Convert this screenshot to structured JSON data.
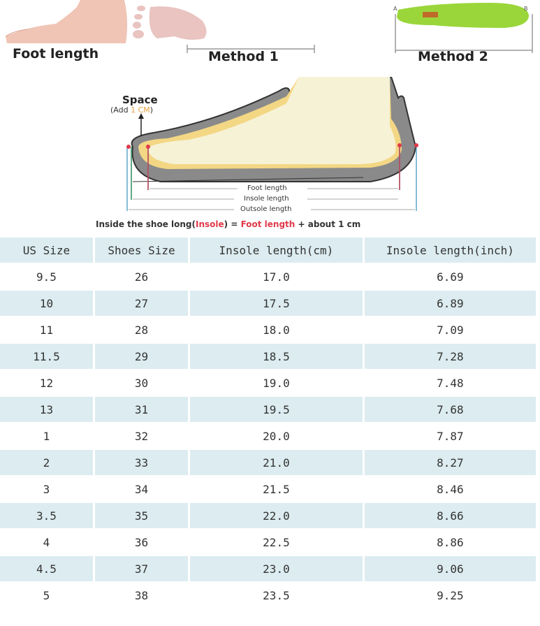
{
  "measure": {
    "foot_caption": "Foot length",
    "method1_caption": "Method 1",
    "method2_caption": "Method 2",
    "insole_point_a": "A",
    "insole_point_b": "B"
  },
  "diagram": {
    "space_title": "Space",
    "space_add_prefix": "(Add ",
    "space_add_value": "1 CM",
    "space_add_suffix": ")",
    "foot_length": "Foot length",
    "insole_length": "Insole length",
    "outsole_length": "Outsole length",
    "formula": {
      "part1": "Inside the shoe long(",
      "insole": "Insole",
      "part2": ") = ",
      "foot_length": "Foot length",
      "part3": " + about 1 cm"
    },
    "colors": {
      "accent_red": "#e03a4a",
      "accent_orange": "#e8a040",
      "insole_green": "#9ad63a"
    }
  },
  "table": {
    "headers": [
      "US Size",
      "Shoes Size",
      "Insole length(cm)",
      "Insole length(inch)"
    ],
    "rows": [
      [
        "9.5",
        "26",
        "17.0",
        "6.69"
      ],
      [
        "10",
        "27",
        "17.5",
        "6.89"
      ],
      [
        "11",
        "28",
        "18.0",
        "7.09"
      ],
      [
        "11.5",
        "29",
        "18.5",
        "7.28"
      ],
      [
        "12",
        "30",
        "19.0",
        "7.48"
      ],
      [
        "13",
        "31",
        "19.5",
        "7.68"
      ],
      [
        "1",
        "32",
        "20.0",
        "7.87"
      ],
      [
        "2",
        "33",
        "21.0",
        "8.27"
      ],
      [
        "3",
        "34",
        "21.5",
        "8.46"
      ],
      [
        "3.5",
        "35",
        "22.0",
        "8.66"
      ],
      [
        "4",
        "36",
        "22.5",
        "8.86"
      ],
      [
        "4.5",
        "37",
        "23.0",
        "9.06"
      ],
      [
        "5",
        "38",
        "23.5",
        "9.25"
      ]
    ],
    "shade_color": "#dcecf0"
  }
}
